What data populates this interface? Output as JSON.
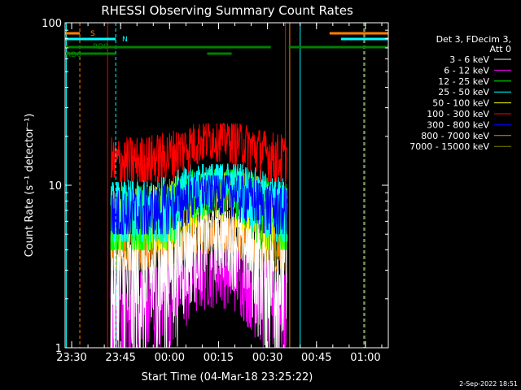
{
  "chart_data": {
    "type": "line",
    "title": "RHESSI Observing Summary Count Rates",
    "xlabel": "Start Time (04-Mar-18 23:25:22)",
    "ylabel": "Count Rate (s⁻¹ detector⁻¹)",
    "yscale": "log",
    "ylim": [
      1,
      100
    ],
    "x_range_minutes": [
      -27,
      72
    ],
    "x_ticks": [
      {
        "minutes": -25,
        "label": "23:30"
      },
      {
        "minutes": -10,
        "label": "23:45"
      },
      {
        "minutes": 5,
        "label": "00:00"
      },
      {
        "minutes": 20,
        "label": "00:15"
      },
      {
        "minutes": 35,
        "label": "00:30"
      },
      {
        "minutes": 50,
        "label": "00:45"
      },
      {
        "minutes": 65,
        "label": "01:00"
      }
    ],
    "y_ticks": [
      {
        "value": 1,
        "label": "1"
      },
      {
        "value": 10,
        "label": "10"
      },
      {
        "value": 100,
        "label": "100"
      }
    ],
    "data_window_minutes": [
      -13.0,
      41.0
    ],
    "legend": {
      "header": [
        "Det 3, FDecim 3,",
        "Att 0"
      ],
      "placement": "right"
    },
    "series": [
      {
        "name": "3 - 6 keV",
        "color": "#ffffff",
        "range": [
          1.0,
          7.0
        ]
      },
      {
        "name": "6 - 12 keV",
        "color": "#ff00ff",
        "range": [
          1.0,
          4.0
        ]
      },
      {
        "name": "12 - 25 keV",
        "color": "#00ff00",
        "range": [
          4.0,
          12.5
        ]
      },
      {
        "name": "25 - 50 keV",
        "color": "#00ffff",
        "range": [
          4.5,
          13.5
        ]
      },
      {
        "name": "50 - 100 keV",
        "color": "#ffff00",
        "range": [
          4.0,
          12.0
        ]
      },
      {
        "name": "100 - 300 keV",
        "color": "#ff0000",
        "range": [
          10.5,
          24.0
        ]
      },
      {
        "name": "300 - 800 keV",
        "color": "#0000ff",
        "range": [
          5.0,
          11.5
        ]
      },
      {
        "name": "800 - 7000 keV",
        "color": "#ff8000",
        "range": [
          3.0,
          6.5
        ]
      },
      {
        "name": "7000 - 15000 keV",
        "color": "#808000",
        "range": [
          3.0,
          6.0
        ]
      }
    ],
    "flag_bars": [
      {
        "label": "S",
        "color": "#ff8000",
        "level": 1,
        "segments": [
          [
            -27,
            -22.5
          ],
          [
            54,
            72
          ]
        ]
      },
      {
        "label": "N",
        "color": "#00ffff",
        "level": 2,
        "segments": [
          [
            -27,
            -11.5
          ],
          [
            57.5,
            72
          ]
        ]
      },
      {
        "label": "RD0",
        "color": "#008000",
        "level": 3,
        "segments": [
          [
            -27,
            -11.5
          ],
          [
            -11.5,
            36
          ],
          [
            41.5,
            72
          ]
        ]
      },
      {
        "label": "RD6",
        "color": "#008000",
        "level": 4,
        "segments": [
          [
            -27,
            -16
          ],
          [
            -17.5,
            -11.5
          ],
          [
            16.5,
            24
          ]
        ]
      }
    ],
    "vertical_markers": [
      {
        "minutes": -22.5,
        "color": "#ff8000",
        "style": "dashed"
      },
      {
        "minutes": -11.5,
        "color": "#00ffff",
        "style": "dashed"
      },
      {
        "minutes": -14.0,
        "color": "#ff0000",
        "style": "solid"
      },
      {
        "minutes": 40.5,
        "color": "#ff0000",
        "style": "solid"
      },
      {
        "minutes": 41.8,
        "color": "#ff8000",
        "style": "solid"
      },
      {
        "minutes": 45.0,
        "color": "#00ffff",
        "style": "solid"
      },
      {
        "minutes": 64.5,
        "color": "#00ffff",
        "style": "dashed"
      },
      {
        "minutes": 64.8,
        "color": "#ff8000",
        "style": "dashed"
      },
      {
        "minutes": -26.6,
        "color": "#00ffff",
        "style": "solid"
      }
    ]
  },
  "footer_date": "2-Sep-2022 18:51"
}
